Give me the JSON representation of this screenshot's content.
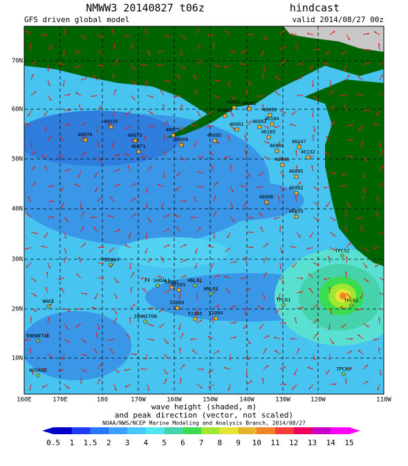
{
  "header": {
    "title": "NMWW3 20140827 t06z",
    "mode": "hindcast",
    "subtitle": "GFS driven global model",
    "valid": "valid 2014/08/27 00z"
  },
  "map": {
    "lat_labels": [
      "70N",
      "60N",
      "50N",
      "40N",
      "30N",
      "20N",
      "10N"
    ],
    "lon_labels": [
      "160E",
      "170E",
      "180",
      "170W",
      "160W",
      "150W",
      "140W",
      "130W",
      "120W",
      "110W"
    ],
    "stations": [
      "46070",
      "46035",
      "46073",
      "46071",
      "46075",
      "46066",
      "46085",
      "46001",
      "46061",
      "46082",
      "46080",
      "46083",
      "46063",
      "46184",
      "46185",
      "46004",
      "46147",
      "46132",
      "46036",
      "46005",
      "46002",
      "46006",
      "46059",
      "TPC52",
      "MIDWAY",
      "FF SHOALS",
      "51001",
      "51101",
      "HNL01",
      "HNL02",
      "51003",
      "JOHNSTON",
      "51305",
      "51004",
      "WAKE",
      "TPC61",
      "TPC62",
      "ENEWETAK",
      "KOSRAE",
      "TPC63"
    ]
  },
  "footer": {
    "line1": "wave height (shaded, m)",
    "line2": "and peak direction (vector, not scaled)",
    "credit": "NOAA/NWS/NCEP Marine Modeling and Analysis Branch, 2014/08/27"
  },
  "colorbar": {
    "labels": [
      "0.5",
      "1",
      "1.5",
      "2",
      "3",
      "4",
      "5",
      "6",
      "7",
      "8",
      "9",
      "10",
      "11",
      "12",
      "13",
      "14",
      "15"
    ],
    "colors": [
      "#0000c8",
      "#1e3cff",
      "#2878ff",
      "#3ca0ff",
      "#46c8ff",
      "#50e6f0",
      "#46d2aa",
      "#3cdc50",
      "#a0e632",
      "#e6e632",
      "#e6b42d",
      "#f08228",
      "#fa3c3c",
      "#f0005a",
      "#c800c8",
      "#ff00ff"
    ]
  }
}
